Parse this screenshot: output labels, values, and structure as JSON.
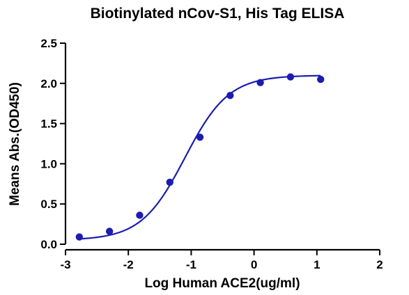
{
  "chart_data": {
    "type": "scatter",
    "title": "Biotinylated nCov-S1, His Tag ELISA",
    "xlabel": "Log Human ACE2(ug/ml)",
    "ylabel": "Means Abs.(OD450)",
    "xlim": [
      -3,
      2
    ],
    "ylim": [
      0,
      2.5
    ],
    "x_ticks": [
      "-3",
      "-2",
      "-1",
      "0",
      "1",
      "2"
    ],
    "y_ticks": [
      "0.0",
      "0.5",
      "1.0",
      "1.5",
      "2.0",
      "2.5"
    ],
    "series": [
      {
        "points": [
          {
            "x": -2.78,
            "y": 0.09
          },
          {
            "x": -2.3,
            "y": 0.16
          },
          {
            "x": -1.82,
            "y": 0.36
          },
          {
            "x": -1.34,
            "y": 0.77
          },
          {
            "x": -0.86,
            "y": 1.33
          },
          {
            "x": -0.38,
            "y": 1.85
          },
          {
            "x": 0.1,
            "y": 2.01
          },
          {
            "x": 0.58,
            "y": 2.08
          },
          {
            "x": 1.06,
            "y": 2.05
          }
        ],
        "fit": "sigmoidal",
        "color": "#1c1cb0"
      }
    ],
    "grid": false,
    "legend": "none"
  }
}
